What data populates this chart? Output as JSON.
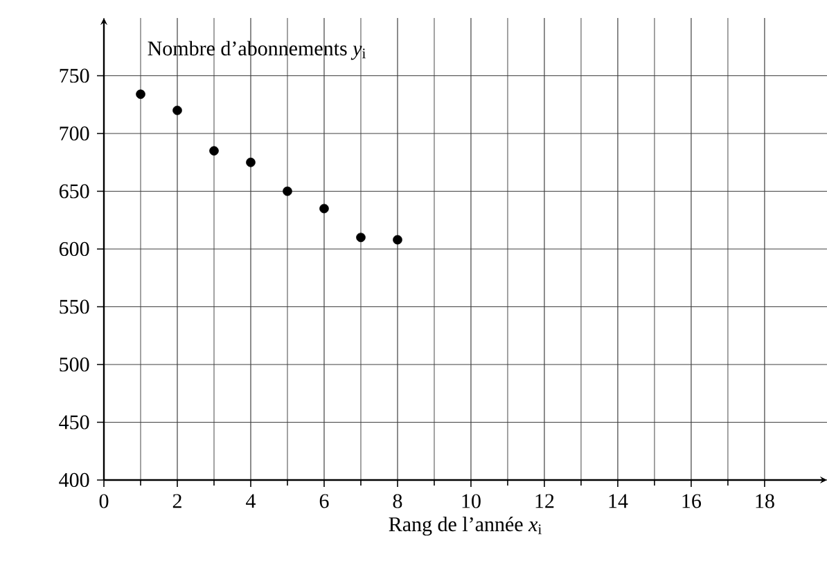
{
  "chart_data": {
    "type": "scatter",
    "xlabel": "Rang de l’année *x*$_{i}$",
    "ylabel": "Nombre d’abonnements *y*$_{i}$",
    "x": [
      1,
      2,
      3,
      4,
      5,
      6,
      7,
      8
    ],
    "series": [
      {
        "color": "#000000",
        "values": [
          734,
          720,
          685,
          675,
          650,
          635,
          610,
          608
        ]
      }
    ],
    "xlim": [
      0,
      19.7
    ],
    "ylim": [
      400,
      800
    ],
    "xticks": [
      0,
      2,
      4,
      6,
      8,
      10,
      12,
      14,
      16,
      18
    ],
    "yticks": [
      400,
      450,
      500,
      550,
      600,
      650,
      700,
      750
    ],
    "grid": true,
    "marker": "circle"
  }
}
